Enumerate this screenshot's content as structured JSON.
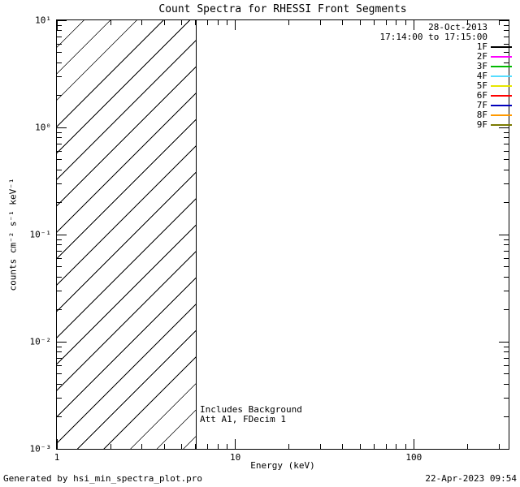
{
  "chart_data": {
    "type": "line",
    "title": "Count Spectra for RHESSI Front Segments",
    "xlabel": "Energy (keV)",
    "ylabel": "counts cm⁻² s⁻¹ keV⁻¹",
    "x_scale": "log",
    "y_scale": "log",
    "xlim": [
      1,
      340
    ],
    "ylim": [
      0.001,
      10
    ],
    "grid": false,
    "x_ticks": [
      {
        "value": 1,
        "label": "1"
      },
      {
        "value": 10,
        "label": "10"
      },
      {
        "value": 100,
        "label": "100"
      }
    ],
    "y_ticks": [
      {
        "value": 10,
        "label": "10¹"
      },
      {
        "value": 1,
        "label": "10⁰"
      },
      {
        "value": 0.1,
        "label": "10⁻¹"
      },
      {
        "value": 0.01,
        "label": "10⁻²"
      },
      {
        "value": 0.001,
        "label": "10⁻³"
      }
    ],
    "series": [],
    "hatched_region": {
      "x_start": 1,
      "x_end": 6,
      "style": "diagonal-hatch"
    },
    "vertical_line_x": 6,
    "annotations": {
      "line1": "Includes Background",
      "line2": "Att A1, FDecim 1"
    },
    "legend": {
      "position": "top-right",
      "date": "28-Oct-2013",
      "time_range": "17:14:00 to 17:15:00",
      "entries": [
        {
          "label": "1F",
          "color": "#000000"
        },
        {
          "label": "2F",
          "color": "#ff00ff"
        },
        {
          "label": "3F",
          "color": "#00bb00"
        },
        {
          "label": "4F",
          "color": "#55ddff"
        },
        {
          "label": "5F",
          "color": "#e6e600"
        },
        {
          "label": "6F",
          "color": "#ff0000"
        },
        {
          "label": "7F",
          "color": "#0000bb"
        },
        {
          "label": "8F",
          "color": "#ff9900"
        },
        {
          "label": "9F",
          "color": "#7a7a00"
        }
      ]
    }
  },
  "footer": {
    "left": "Generated by hsi_min_spectra_plot.pro",
    "right": "22-Apr-2023 09:54"
  }
}
